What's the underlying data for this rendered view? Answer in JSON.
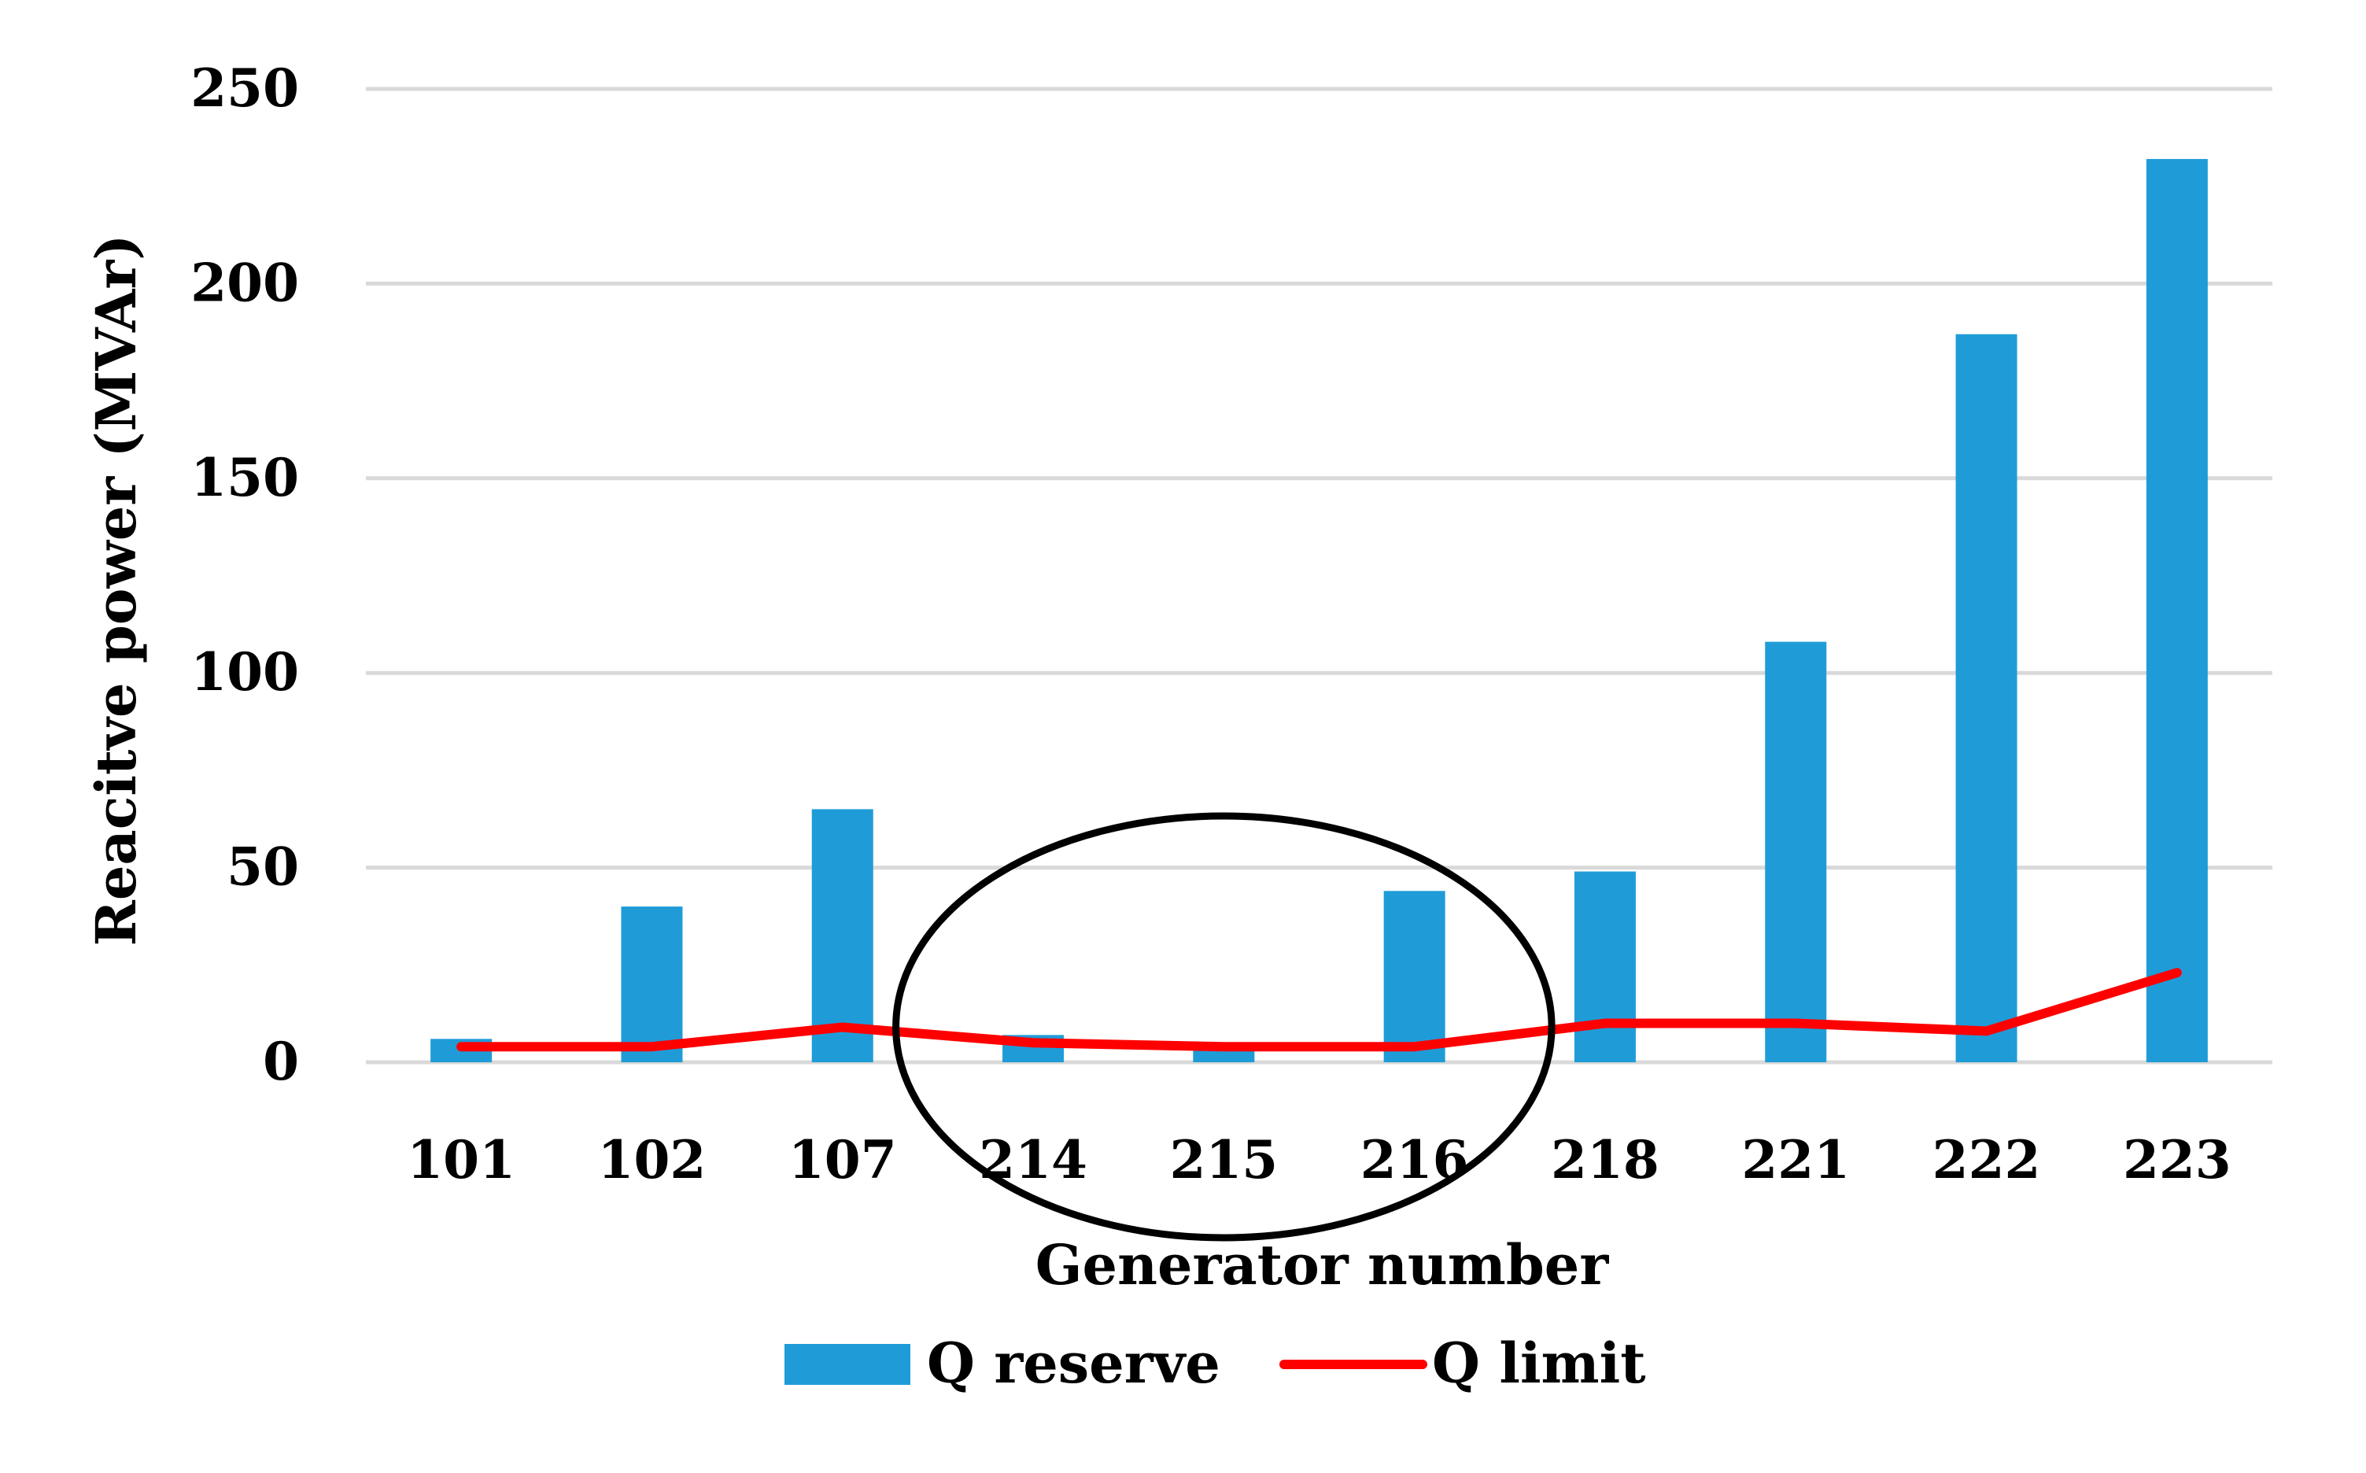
{
  "chart_data": {
    "type": "bar",
    "title": "",
    "xlabel": "Generator number",
    "ylabel": "Reacitve power (MVAr)",
    "categories": [
      "101",
      "102",
      "107",
      "214",
      "215",
      "216",
      "218",
      "221",
      "222",
      "223"
    ],
    "series": [
      {
        "name": "Q reserve",
        "type": "bar",
        "color": "#1f9cd8",
        "values": [
          6,
          40,
          65,
          7,
          3,
          44,
          49,
          108,
          187,
          232
        ]
      },
      {
        "name": "Q limit",
        "type": "line",
        "color": "#ff0000",
        "values": [
          4,
          4,
          9,
          5,
          4,
          4,
          10,
          10,
          8,
          23
        ]
      }
    ],
    "ylim": [
      0,
      250
    ],
    "yticks": [
      "0",
      "50",
      "100",
      "150",
      "200",
      "250"
    ],
    "grid": true,
    "legend_position": "bottom",
    "annotations": [
      {
        "type": "ellipse",
        "encloses_categories": [
          "214",
          "215",
          "216"
        ],
        "color": "#000000"
      }
    ]
  }
}
